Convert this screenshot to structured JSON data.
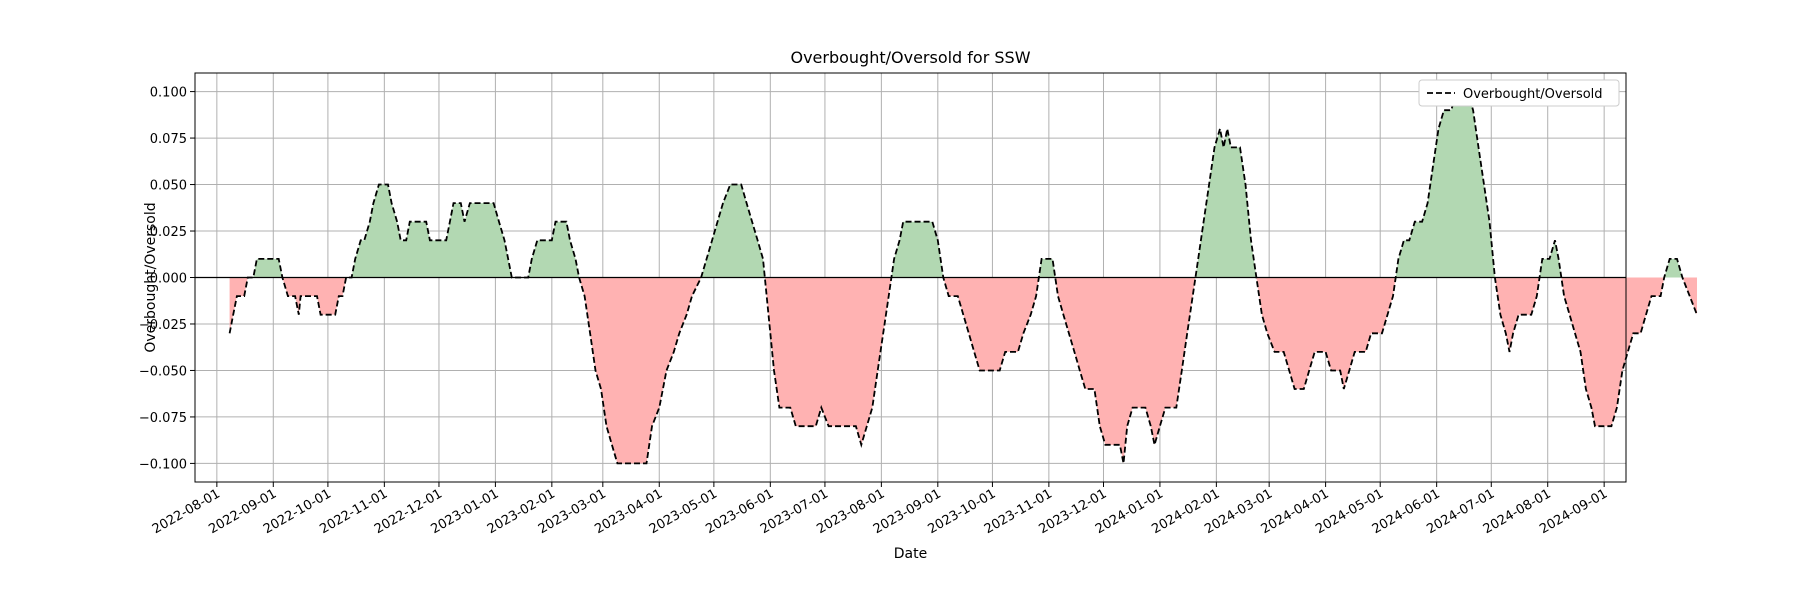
{
  "chart_data": {
    "type": "area",
    "title": "Overbought/Oversold for SSW",
    "xlabel": "Date",
    "ylabel": "Overbought/Oversold",
    "xlim": [
      "2022-07-20",
      "2024-09-13"
    ],
    "ylim": [
      -0.11,
      0.11
    ],
    "grid": true,
    "legend_position": "top-right",
    "x_ticks": [
      "2022-08-01",
      "2022-09-01",
      "2022-10-01",
      "2022-11-01",
      "2022-12-01",
      "2023-01-01",
      "2023-02-01",
      "2023-03-01",
      "2023-04-01",
      "2023-05-01",
      "2023-06-01",
      "2023-07-01",
      "2023-08-01",
      "2023-09-01",
      "2023-10-01",
      "2023-11-01",
      "2023-12-01",
      "2024-01-01",
      "2024-02-01",
      "2024-03-01",
      "2024-04-01",
      "2024-05-01",
      "2024-06-01",
      "2024-07-01",
      "2024-08-01",
      "2024-09-01"
    ],
    "y_ticks": [
      "0.100",
      "0.075",
      "0.050",
      "0.025",
      "0.000",
      "−0.025",
      "−0.050",
      "−0.075",
      "−0.100"
    ],
    "y_tick_values": [
      0.1,
      0.075,
      0.05,
      0.025,
      0,
      -0.025,
      -0.05,
      -0.075,
      -0.1
    ],
    "colors": {
      "positive_fill": "#b2d8b2",
      "negative_fill": "#ffb2b2",
      "line": "#000000",
      "zero_line": "#000000"
    },
    "series": [
      {
        "name": "Overbought/Oversold",
        "style": "dashed",
        "points": [
          [
            "2022-08-08",
            -0.03
          ],
          [
            "2022-08-10",
            -0.02
          ],
          [
            "2022-08-12",
            -0.01
          ],
          [
            "2022-08-16",
            -0.01
          ],
          [
            "2022-08-18",
            0.0
          ],
          [
            "2022-08-21",
            0.0
          ],
          [
            "2022-08-23",
            0.01
          ],
          [
            "2022-09-04",
            0.01
          ],
          [
            "2022-09-06",
            0.0
          ],
          [
            "2022-09-09",
            -0.01
          ],
          [
            "2022-09-13",
            -0.01
          ],
          [
            "2022-09-15",
            -0.02
          ],
          [
            "2022-09-16",
            -0.01
          ],
          [
            "2022-09-25",
            -0.01
          ],
          [
            "2022-09-27",
            -0.02
          ],
          [
            "2022-10-05",
            -0.02
          ],
          [
            "2022-10-07",
            -0.01
          ],
          [
            "2022-10-09",
            -0.01
          ],
          [
            "2022-10-11",
            0.0
          ],
          [
            "2022-10-14",
            0.0
          ],
          [
            "2022-10-16",
            0.01
          ],
          [
            "2022-10-19",
            0.02
          ],
          [
            "2022-10-21",
            0.02
          ],
          [
            "2022-10-24",
            0.03
          ],
          [
            "2022-10-26",
            0.04
          ],
          [
            "2022-10-29",
            0.05
          ],
          [
            "2022-11-03",
            0.05
          ],
          [
            "2022-11-05",
            0.04
          ],
          [
            "2022-11-08",
            0.03
          ],
          [
            "2022-11-10",
            0.02
          ],
          [
            "2022-11-13",
            0.02
          ],
          [
            "2022-11-15",
            0.03
          ],
          [
            "2022-11-24",
            0.03
          ],
          [
            "2022-11-26",
            0.02
          ],
          [
            "2022-12-05",
            0.02
          ],
          [
            "2022-12-07",
            0.03
          ],
          [
            "2022-12-09",
            0.04
          ],
          [
            "2022-12-13",
            0.04
          ],
          [
            "2022-12-15",
            0.03
          ],
          [
            "2022-12-18",
            0.04
          ],
          [
            "2022-12-31",
            0.04
          ],
          [
            "2023-01-03",
            0.03
          ],
          [
            "2023-01-06",
            0.02
          ],
          [
            "2023-01-10",
            0.0
          ],
          [
            "2023-01-19",
            0.0
          ],
          [
            "2023-01-21",
            0.01
          ],
          [
            "2023-01-24",
            0.02
          ],
          [
            "2023-02-01",
            0.02
          ],
          [
            "2023-02-03",
            0.03
          ],
          [
            "2023-02-09",
            0.03
          ],
          [
            "2023-02-11",
            0.02
          ],
          [
            "2023-02-14",
            0.01
          ],
          [
            "2023-02-16",
            0.0
          ],
          [
            "2023-02-19",
            -0.01
          ],
          [
            "2023-02-22",
            -0.03
          ],
          [
            "2023-02-25",
            -0.05
          ],
          [
            "2023-02-28",
            -0.06
          ],
          [
            "2023-03-03",
            -0.08
          ],
          [
            "2023-03-06",
            -0.09
          ],
          [
            "2023-03-09",
            -0.1
          ],
          [
            "2023-03-25",
            -0.1
          ],
          [
            "2023-03-28",
            -0.08
          ],
          [
            "2023-04-01",
            -0.07
          ],
          [
            "2023-04-05",
            -0.05
          ],
          [
            "2023-04-09",
            -0.04
          ],
          [
            "2023-04-12",
            -0.03
          ],
          [
            "2023-04-16",
            -0.02
          ],
          [
            "2023-04-19",
            -0.01
          ],
          [
            "2023-04-24",
            0.0
          ],
          [
            "2023-04-27",
            0.01
          ],
          [
            "2023-04-30",
            0.02
          ],
          [
            "2023-05-03",
            0.03
          ],
          [
            "2023-05-06",
            0.04
          ],
          [
            "2023-05-10",
            0.05
          ],
          [
            "2023-05-16",
            0.05
          ],
          [
            "2023-05-19",
            0.04
          ],
          [
            "2023-05-22",
            0.03
          ],
          [
            "2023-05-25",
            0.02
          ],
          [
            "2023-05-28",
            0.01
          ],
          [
            "2023-05-31",
            -0.02
          ],
          [
            "2023-06-03",
            -0.05
          ],
          [
            "2023-06-06",
            -0.07
          ],
          [
            "2023-06-12",
            -0.07
          ],
          [
            "2023-06-15",
            -0.08
          ],
          [
            "2023-06-26",
            -0.08
          ],
          [
            "2023-06-29",
            -0.07
          ],
          [
            "2023-07-03",
            -0.08
          ],
          [
            "2023-07-18",
            -0.08
          ],
          [
            "2023-07-21",
            -0.09
          ],
          [
            "2023-07-24",
            -0.08
          ],
          [
            "2023-07-27",
            -0.07
          ],
          [
            "2023-07-30",
            -0.05
          ],
          [
            "2023-08-02",
            -0.03
          ],
          [
            "2023-08-05",
            -0.01
          ],
          [
            "2023-08-08",
            0.01
          ],
          [
            "2023-08-11",
            0.02
          ],
          [
            "2023-08-13",
            0.03
          ],
          [
            "2023-08-29",
            0.03
          ],
          [
            "2023-09-01",
            0.02
          ],
          [
            "2023-09-04",
            0.0
          ],
          [
            "2023-09-07",
            -0.01
          ],
          [
            "2023-09-12",
            -0.01
          ],
          [
            "2023-09-15",
            -0.02
          ],
          [
            "2023-09-18",
            -0.03
          ],
          [
            "2023-09-21",
            -0.04
          ],
          [
            "2023-09-24",
            -0.05
          ],
          [
            "2023-10-05",
            -0.05
          ],
          [
            "2023-10-08",
            -0.04
          ],
          [
            "2023-10-15",
            -0.04
          ],
          [
            "2023-10-18",
            -0.03
          ],
          [
            "2023-10-22",
            -0.02
          ],
          [
            "2023-10-25",
            -0.01
          ],
          [
            "2023-10-28",
            0.01
          ],
          [
            "2023-11-03",
            0.01
          ],
          [
            "2023-11-06",
            -0.01
          ],
          [
            "2023-11-09",
            -0.02
          ],
          [
            "2023-11-12",
            -0.03
          ],
          [
            "2023-11-15",
            -0.04
          ],
          [
            "2023-11-18",
            -0.05
          ],
          [
            "2023-11-21",
            -0.06
          ],
          [
            "2023-11-26",
            -0.06
          ],
          [
            "2023-11-29",
            -0.08
          ],
          [
            "2023-12-02",
            -0.09
          ],
          [
            "2023-12-10",
            -0.09
          ],
          [
            "2023-12-12",
            -0.1
          ],
          [
            "2023-12-14",
            -0.08
          ],
          [
            "2023-12-17",
            -0.07
          ],
          [
            "2023-12-24",
            -0.07
          ],
          [
            "2023-12-27",
            -0.08
          ],
          [
            "2023-12-29",
            -0.09
          ],
          [
            "2024-01-01",
            -0.08
          ],
          [
            "2024-01-04",
            -0.07
          ],
          [
            "2024-01-10",
            -0.07
          ],
          [
            "2024-01-13",
            -0.05
          ],
          [
            "2024-01-16",
            -0.03
          ],
          [
            "2024-01-19",
            -0.01
          ],
          [
            "2024-01-22",
            0.01
          ],
          [
            "2024-01-25",
            0.03
          ],
          [
            "2024-01-28",
            0.05
          ],
          [
            "2024-01-31",
            0.07
          ],
          [
            "2024-02-03",
            0.08
          ],
          [
            "2024-02-05",
            0.07
          ],
          [
            "2024-02-07",
            0.08
          ],
          [
            "2024-02-09",
            0.07
          ],
          [
            "2024-02-14",
            0.07
          ],
          [
            "2024-02-17",
            0.05
          ],
          [
            "2024-02-20",
            0.02
          ],
          [
            "2024-02-23",
            0.0
          ],
          [
            "2024-02-26",
            -0.02
          ],
          [
            "2024-02-29",
            -0.03
          ],
          [
            "2024-03-04",
            -0.04
          ],
          [
            "2024-03-09",
            -0.04
          ],
          [
            "2024-03-12",
            -0.05
          ],
          [
            "2024-03-15",
            -0.06
          ],
          [
            "2024-03-20",
            -0.06
          ],
          [
            "2024-03-23",
            -0.05
          ],
          [
            "2024-03-26",
            -0.04
          ],
          [
            "2024-04-01",
            -0.04
          ],
          [
            "2024-04-04",
            -0.05
          ],
          [
            "2024-04-09",
            -0.05
          ],
          [
            "2024-04-11",
            -0.06
          ],
          [
            "2024-04-14",
            -0.05
          ],
          [
            "2024-04-17",
            -0.04
          ],
          [
            "2024-04-23",
            -0.04
          ],
          [
            "2024-04-26",
            -0.03
          ],
          [
            "2024-05-02",
            -0.03
          ],
          [
            "2024-05-05",
            -0.02
          ],
          [
            "2024-05-08",
            -0.01
          ],
          [
            "2024-05-11",
            0.01
          ],
          [
            "2024-05-14",
            0.02
          ],
          [
            "2024-05-17",
            0.02
          ],
          [
            "2024-05-20",
            0.03
          ],
          [
            "2024-05-24",
            0.03
          ],
          [
            "2024-05-27",
            0.04
          ],
          [
            "2024-05-30",
            0.06
          ],
          [
            "2024-06-02",
            0.08
          ],
          [
            "2024-06-05",
            0.09
          ],
          [
            "2024-06-09",
            0.09
          ],
          [
            "2024-06-12",
            0.1
          ],
          [
            "2024-06-18",
            0.1
          ],
          [
            "2024-06-21",
            0.09
          ],
          [
            "2024-06-24",
            0.07
          ],
          [
            "2024-06-27",
            0.05
          ],
          [
            "2024-06-30",
            0.03
          ],
          [
            "2024-07-03",
            0.0
          ],
          [
            "2024-07-06",
            -0.02
          ],
          [
            "2024-07-09",
            -0.03
          ],
          [
            "2024-07-11",
            -0.04
          ],
          [
            "2024-07-13",
            -0.03
          ],
          [
            "2024-07-16",
            -0.02
          ],
          [
            "2024-07-23",
            -0.02
          ],
          [
            "2024-07-26",
            -0.01
          ],
          [
            "2024-07-29",
            0.01
          ],
          [
            "2024-08-02",
            0.01
          ],
          [
            "2024-08-05",
            0.02
          ],
          [
            "2024-08-07",
            0.01
          ],
          [
            "2024-08-10",
            -0.01
          ],
          [
            "2024-08-13",
            -0.02
          ],
          [
            "2024-08-16",
            -0.03
          ],
          [
            "2024-08-19",
            -0.04
          ],
          [
            "2024-08-22",
            -0.06
          ],
          [
            "2024-08-25",
            -0.07
          ],
          [
            "2024-08-27",
            -0.08
          ],
          [
            "2024-09-05",
            -0.08
          ],
          [
            "2024-09-08",
            -0.07
          ],
          [
            "2024-09-11",
            -0.05
          ],
          [
            "2024-09-14",
            -0.04
          ],
          [
            "2024-09-17",
            -0.03
          ],
          [
            "2024-09-21",
            -0.03
          ],
          [
            "2024-09-24",
            -0.02
          ],
          [
            "2024-09-27",
            -0.01
          ],
          [
            "2024-10-02",
            -0.01
          ],
          [
            "2024-10-04",
            0.0
          ],
          [
            "2024-10-07",
            0.01
          ],
          [
            "2024-10-11",
            0.01
          ],
          [
            "2024-10-14",
            0.0
          ],
          [
            "2024-10-18",
            -0.01
          ],
          [
            "2024-10-22",
            -0.02
          ]
        ]
      }
    ]
  }
}
